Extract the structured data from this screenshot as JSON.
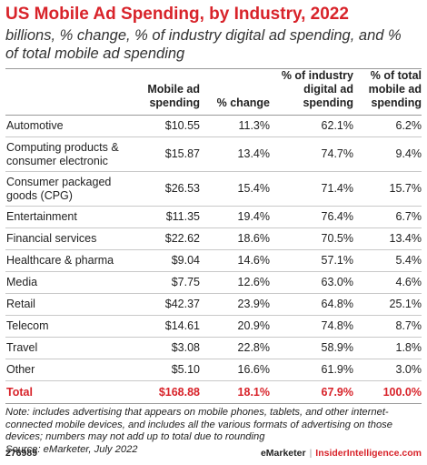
{
  "chart_data": {
    "type": "table",
    "title": "US Mobile Ad Spending, by Industry, 2022",
    "subtitle": "billions, % change, % of industry digital ad spending, and % of total mobile ad spending",
    "columns": [
      [
        "",
        ""
      ],
      [
        "Mobile ad",
        "spending"
      ],
      [
        "",
        "% change"
      ],
      [
        "% of industry",
        "digital ad",
        "spending"
      ],
      [
        "% of total",
        "mobile ad",
        "spending"
      ]
    ],
    "rows": [
      [
        "Automotive",
        "$10.55",
        "11.3%",
        "62.1%",
        "6.2%"
      ],
      [
        "Computing products & consumer electronic",
        "$15.87",
        "13.4%",
        "74.7%",
        "9.4%"
      ],
      [
        "Consumer packaged goods (CPG)",
        "$26.53",
        "15.4%",
        "71.4%",
        "15.7%"
      ],
      [
        "Entertainment",
        "$11.35",
        "19.4%",
        "76.4%",
        "6.7%"
      ],
      [
        "Financial services",
        "$22.62",
        "18.6%",
        "70.5%",
        "13.4%"
      ],
      [
        "Healthcare & pharma",
        "$9.04",
        "14.6%",
        "57.1%",
        "5.4%"
      ],
      [
        "Media",
        "$7.75",
        "12.6%",
        "63.0%",
        "4.6%"
      ],
      [
        "Retail",
        "$42.37",
        "23.9%",
        "64.8%",
        "25.1%"
      ],
      [
        "Telecom",
        "$14.61",
        "20.9%",
        "74.8%",
        "8.7%"
      ],
      [
        "Travel",
        "$3.08",
        "22.8%",
        "58.9%",
        "1.8%"
      ],
      [
        "Other",
        "$5.10",
        "16.6%",
        "61.9%",
        "3.0%"
      ]
    ],
    "total": [
      "Total",
      "$168.88",
      "18.1%",
      "67.9%",
      "100.0%"
    ]
  },
  "note": "Note: includes advertising that appears on mobile phones, tablets, and other internet-connected mobile devices, and includes all the various formats of advertising on those devices; numbers may not add up to total due to rounding",
  "source": "Source: eMarketer, July 2022",
  "footer": {
    "chart_id": "276989",
    "brand_left": "eMarketer",
    "separator": "|",
    "brand_right": "InsiderIntelligence.com"
  },
  "colors": {
    "accent": "#d8232a",
    "text": "#222222",
    "rule": "#c8c8c8"
  }
}
